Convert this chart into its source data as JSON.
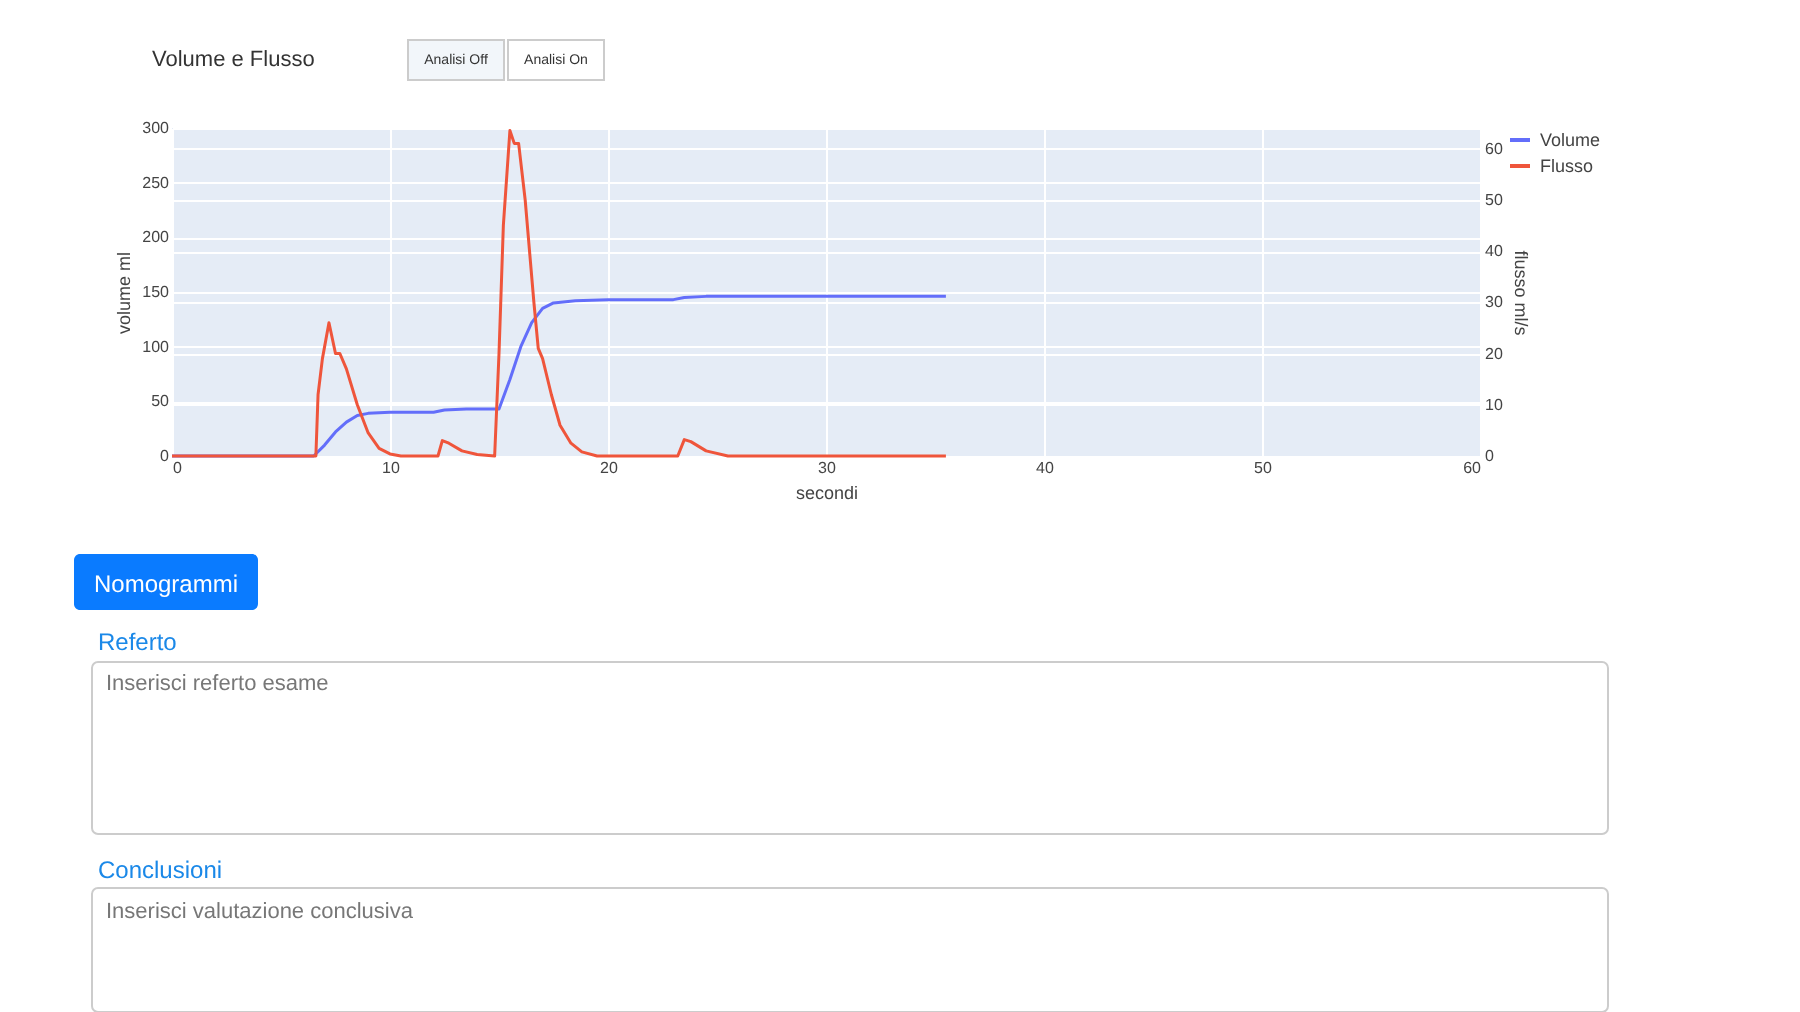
{
  "chart_data": {
    "type": "line",
    "title": "Volume e Flusso",
    "xlabel": "secondi",
    "ylabel": "volume ml",
    "y2label": "flusso ml/s",
    "xlim": [
      0,
      60
    ],
    "xticks": [
      0,
      10,
      20,
      30,
      40,
      50,
      60
    ],
    "ylim": [
      0,
      300
    ],
    "yticks": [
      0,
      50,
      100,
      150,
      200,
      250,
      300
    ],
    "y2lim": [
      0,
      64
    ],
    "y2ticks": [
      0,
      10,
      20,
      30,
      40,
      50,
      60
    ],
    "grid": true,
    "legend": "top right",
    "line_style": "solid",
    "marker": "none",
    "series": [
      {
        "name": "Volume",
        "color": "#636efa",
        "x": [
          0,
          6.5,
          7.0,
          7.5,
          8.0,
          8.5,
          9.0,
          10,
          12,
          12.5,
          13.5,
          15.0,
          15.5,
          16.0,
          16.5,
          17.0,
          17.5,
          18.5,
          20,
          23,
          23.5,
          24.5,
          35.5
        ],
        "values": [
          0,
          0,
          10,
          22,
          31,
          37,
          39,
          40,
          40,
          42,
          43,
          43,
          70,
          100,
          122,
          135,
          140,
          142,
          143,
          143,
          145,
          146,
          146
        ]
      },
      {
        "name": "Flusso",
        "color": "#ef553b",
        "axis": "y2",
        "x": [
          0,
          6.6,
          6.7,
          6.9,
          7.2,
          7.5,
          7.7,
          8.0,
          8.5,
          9.0,
          9.5,
          10.0,
          10.5,
          12.2,
          12.4,
          12.7,
          13.3,
          14.0,
          14.8,
          15.0,
          15.2,
          15.5,
          15.7,
          15.9,
          16.2,
          16.6,
          16.8,
          17.0,
          17.4,
          17.8,
          18.3,
          18.8,
          19.5,
          23.2,
          23.5,
          23.8,
          24.5,
          25.5,
          35.5
        ],
        "values": [
          0,
          0,
          12,
          19,
          26,
          20,
          20,
          17,
          10,
          4.5,
          1.5,
          0.4,
          0,
          0,
          3,
          2.5,
          1,
          0.3,
          0,
          20,
          45,
          63.5,
          61,
          61,
          50,
          30,
          21,
          19,
          12,
          6,
          2.5,
          0.8,
          0,
          0,
          3.2,
          2.8,
          1,
          0,
          0
        ]
      }
    ],
    "annotations": [
      "Analisi Off",
      "Analisi On",
      "Nomogrammi",
      "Referto",
      "Inserisci referto esame",
      "Conclusioni",
      "Inserisci valutazione conclusiva"
    ]
  }
}
